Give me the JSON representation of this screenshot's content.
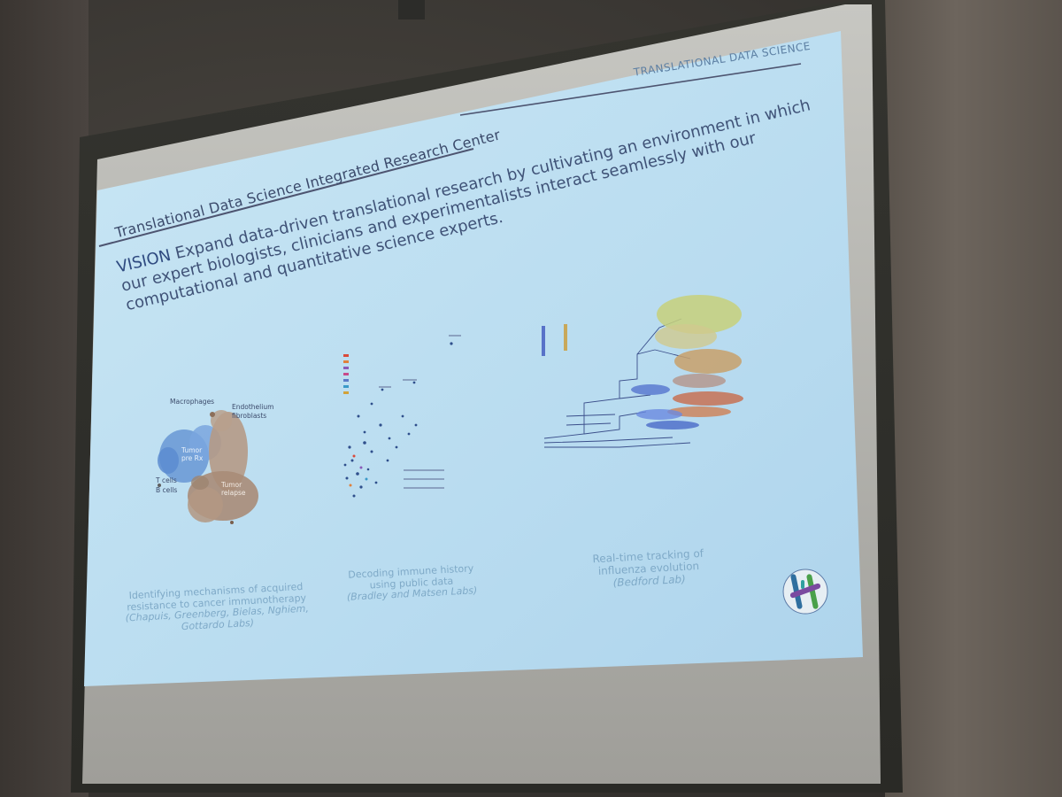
{
  "slide": {
    "header_right": "TRANSLATIONAL DATA SCIENCE",
    "title": "Translational Data Science Integrated Research Center",
    "vision_label": "VISION",
    "vision_lines": [
      "Expand data-driven translational research by cultivating an environment in which",
      "our expert biologists, clinicians and experimentalists interact seamlessly with our",
      "computational and quantitative science experts."
    ],
    "panels": [
      {
        "caption_lines": [
          "Identifying mechanisms of acquired",
          "resistance to cancer immunotherapy"
        ],
        "labs_lines": [
          "(Chapuis, Greenberg, Bielas, Nghiem,",
          "Gottardo Labs)"
        ]
      },
      {
        "caption_lines": [
          "Decoding immune history",
          "using public data"
        ],
        "labs_lines": [
          "(Bradley and Matsen Labs)"
        ]
      },
      {
        "caption_lines": [
          "Real-time tracking of",
          "influenza evolution"
        ],
        "labs_lines": [
          "(Bedford Lab)"
        ]
      }
    ],
    "tsne_labels": {
      "macrophages": "Macrophages",
      "endothelium": "Endothelium",
      "fibroblasts": "fibroblasts",
      "tumor": "Tumor",
      "pre": "pre Rx",
      "t_cells": "T cells",
      "b_cells": "B cells",
      "tumor_relapse": "Tumor",
      "relapse": "relapse"
    },
    "colors": {
      "slide_bg": "#bfe0f2",
      "title": "#3b4a6b",
      "caption": "#7ea9c7",
      "rule": "#4d5470"
    }
  }
}
